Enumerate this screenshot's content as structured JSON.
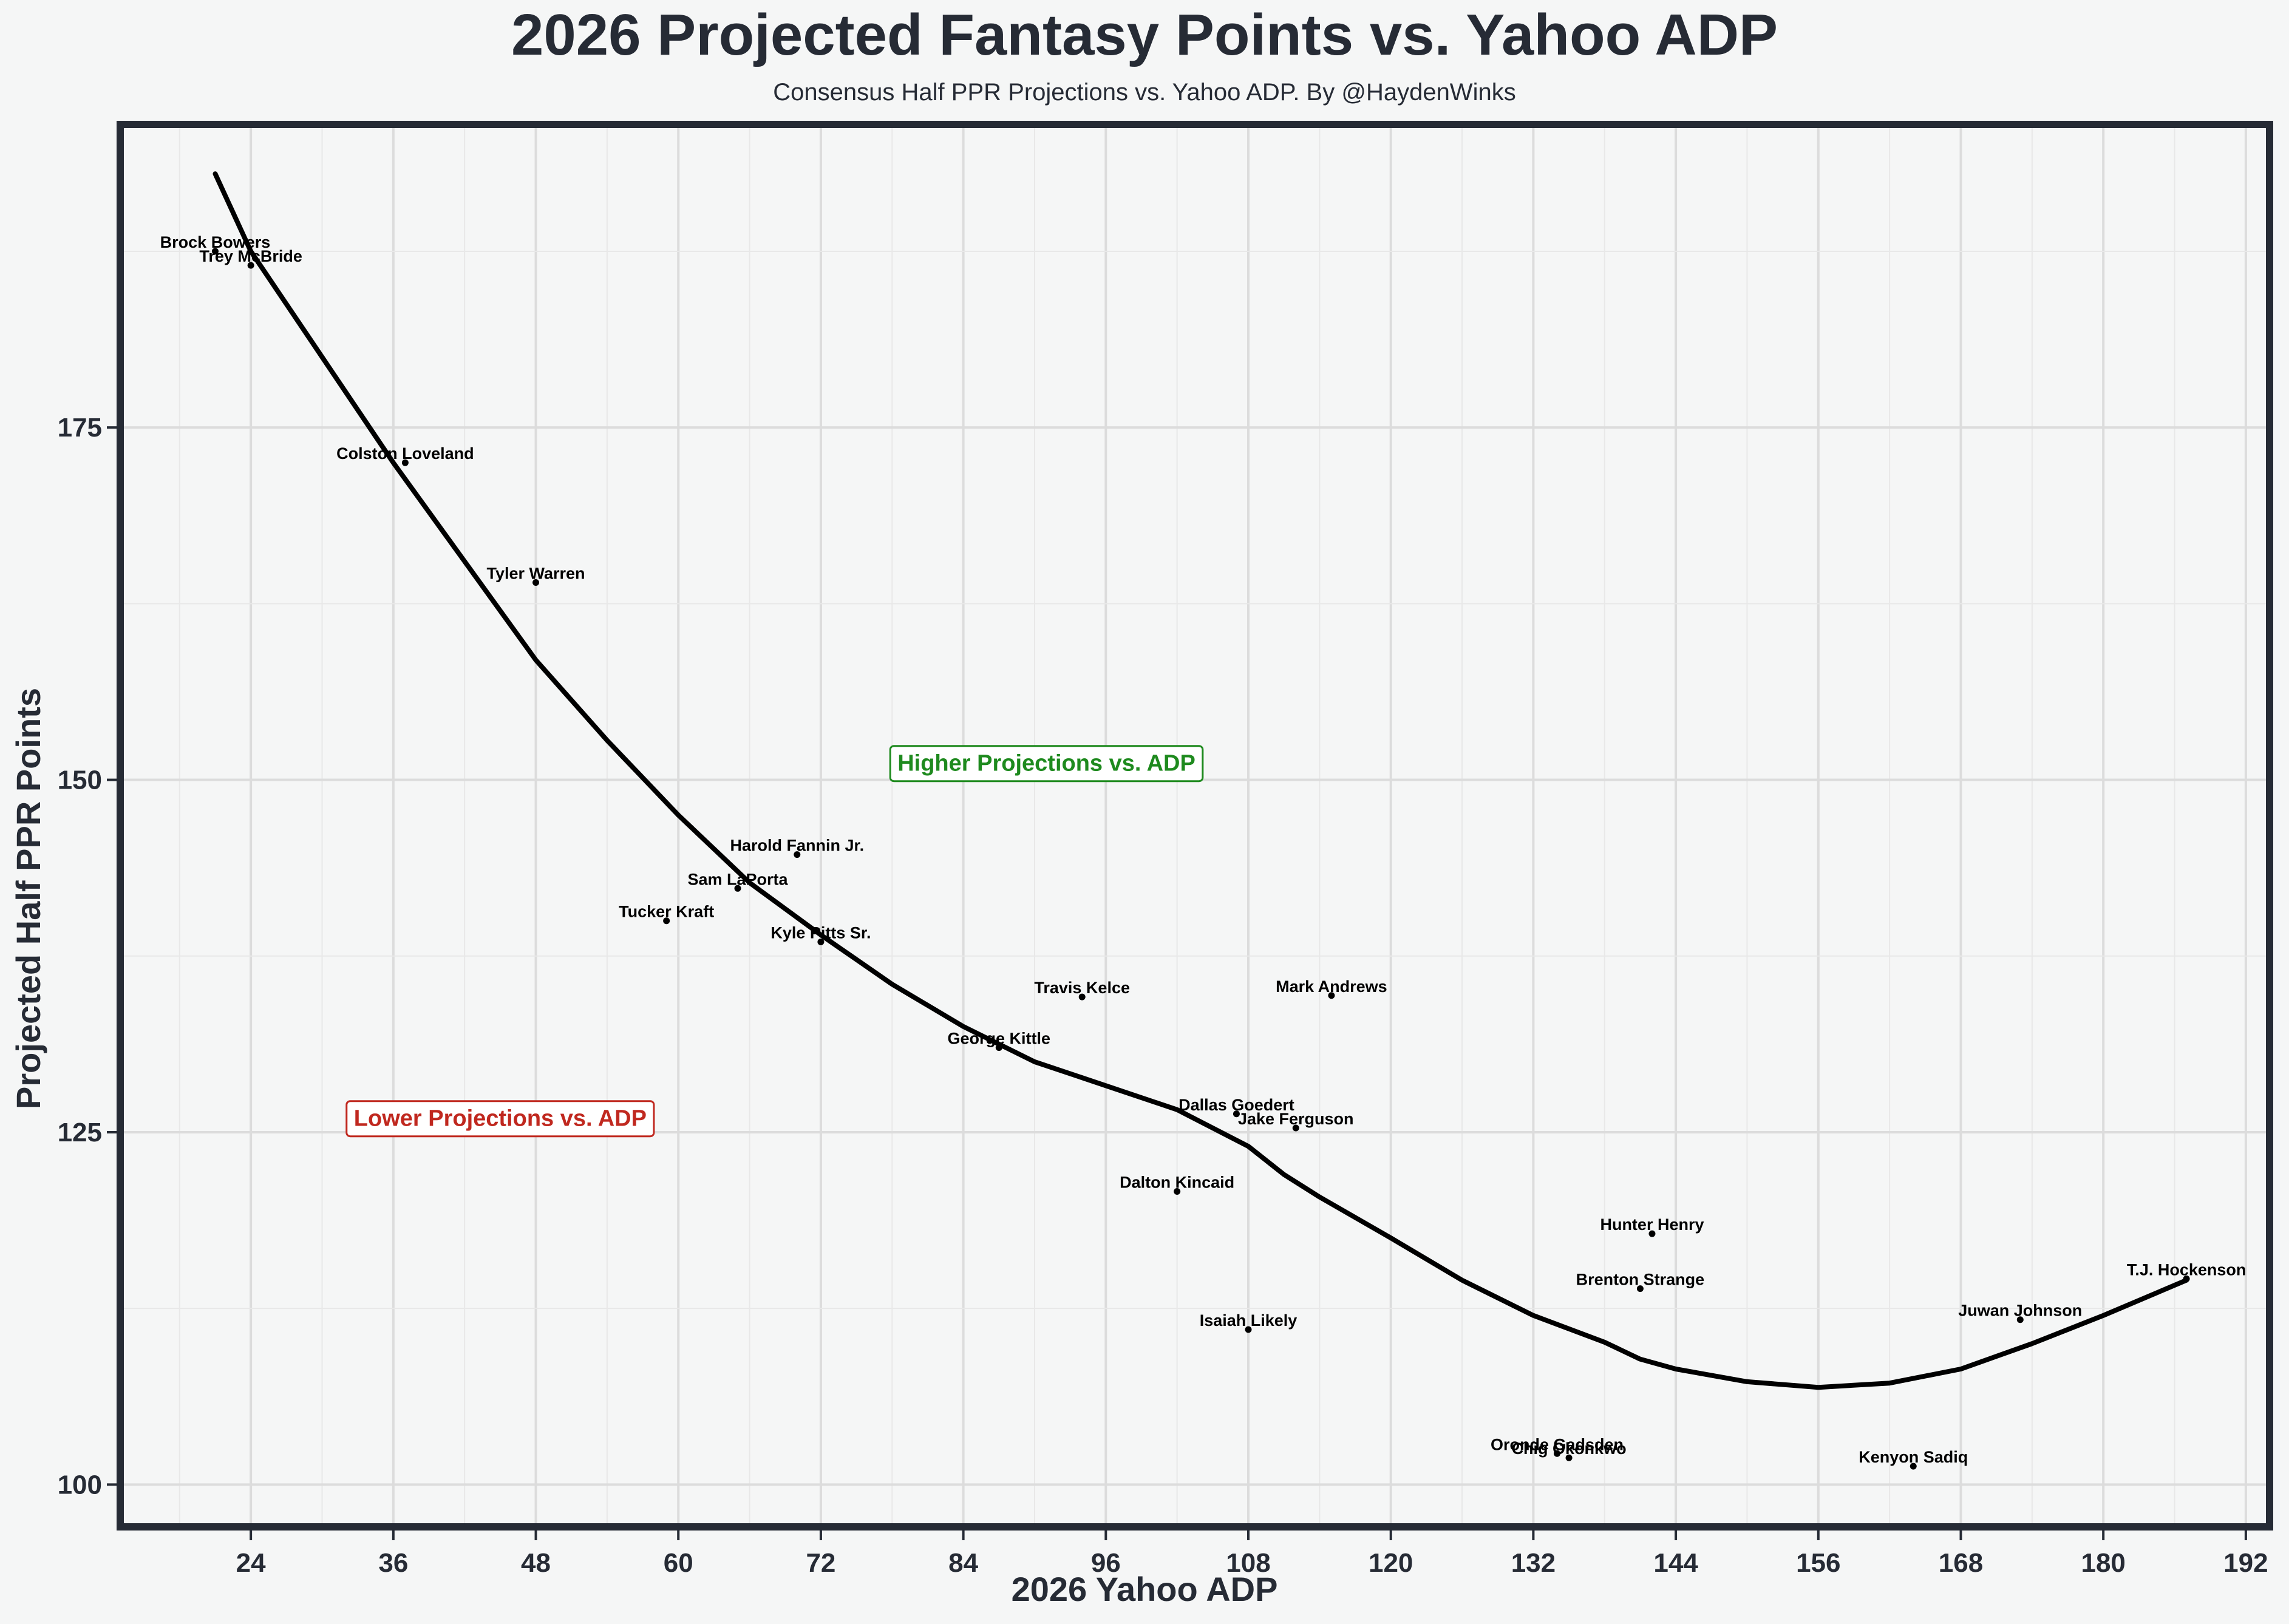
{
  "chart_data": {
    "type": "scatter",
    "title": "2026 Projected Fantasy Points vs. Yahoo ADP",
    "subtitle": "Consensus Half PPR Projections vs. Yahoo ADP. By @HaydenWinks",
    "xlabel": "2026 Yahoo ADP",
    "ylabel": "Projected Half PPR Points",
    "xlim": [
      13,
      194
    ],
    "ylim": [
      97,
      196.5
    ],
    "x_ticks": [
      24,
      36,
      48,
      60,
      72,
      84,
      96,
      108,
      120,
      132,
      144,
      156,
      168,
      180,
      192
    ],
    "y_ticks": [
      100,
      125,
      150,
      175
    ],
    "grid": true,
    "points": [
      {
        "name": "Brock Bowers",
        "x": 21,
        "y": 187.5
      },
      {
        "name": "Trey McBride",
        "x": 24,
        "y": 186.5
      },
      {
        "name": "Colston Loveland",
        "x": 37,
        "y": 172.5
      },
      {
        "name": "Tyler Warren",
        "x": 48,
        "y": 164
      },
      {
        "name": "Tucker Kraft",
        "x": 59,
        "y": 140
      },
      {
        "name": "Harold Fannin Jr.",
        "x": 70,
        "y": 144.7
      },
      {
        "name": "Sam LaPorta",
        "x": 65,
        "y": 142.3
      },
      {
        "name": "Kyle Pitts Sr.",
        "x": 72,
        "y": 138.5
      },
      {
        "name": "Travis Kelce",
        "x": 94,
        "y": 134.6
      },
      {
        "name": "George Kittle",
        "x": 87,
        "y": 131
      },
      {
        "name": "Mark Andrews",
        "x": 115,
        "y": 134.7
      },
      {
        "name": "Dallas Goedert",
        "x": 107,
        "y": 126.3
      },
      {
        "name": "Jake Ferguson",
        "x": 112,
        "y": 125.3
      },
      {
        "name": "Dalton Kincaid",
        "x": 102,
        "y": 120.8
      },
      {
        "name": "Isaiah Likely",
        "x": 108,
        "y": 111
      },
      {
        "name": "Hunter Henry",
        "x": 142,
        "y": 117.8
      },
      {
        "name": "Brenton Strange",
        "x": 141,
        "y": 113.9
      },
      {
        "name": "Oronde Gadsden",
        "x": 134,
        "y": 102.2
      },
      {
        "name": "Chig Okonkwo",
        "x": 135,
        "y": 101.9
      },
      {
        "name": "Kenyon Sadiq",
        "x": 164,
        "y": 101.3
      },
      {
        "name": "Juwan Johnson",
        "x": 173,
        "y": 111.7
      },
      {
        "name": "T.J. Hockenson",
        "x": 187,
        "y": 114.6
      }
    ],
    "trend_line": {
      "x": [
        21,
        24,
        30,
        36,
        42,
        48,
        54,
        60,
        66,
        72,
        78,
        84,
        90,
        96,
        102,
        108,
        111,
        114,
        120,
        126,
        132,
        138,
        141,
        144,
        150,
        156,
        162,
        168,
        174,
        180,
        187
      ],
      "y": [
        193,
        187.5,
        180,
        172.5,
        165.5,
        158.5,
        152.8,
        147.5,
        142.7,
        139,
        135.5,
        132.5,
        130,
        128.3,
        126.6,
        124,
        122,
        120.4,
        117.5,
        114.5,
        112,
        110.1,
        108.9,
        108.2,
        107.3,
        106.9,
        107.2,
        108.2,
        110,
        112,
        114.5
      ]
    },
    "annotations": [
      {
        "text": "Higher Projections vs. ADP",
        "x": 91,
        "y": 151.2,
        "color": "#1e8a1e"
      },
      {
        "text": "Lower Projections vs. ADP",
        "x": 45,
        "y": 126,
        "color": "#c0281f"
      }
    ]
  }
}
